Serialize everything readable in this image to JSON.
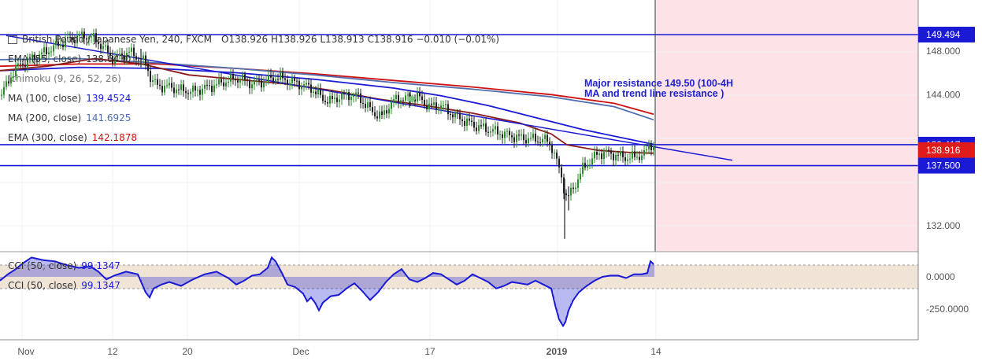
{
  "header": {
    "symbol": "British Pound / Japanese Yen, 240, FXCM",
    "ohlc": "O138.926  H138.926  L138.913  C138.916  −0.010 (−0.01%)"
  },
  "indicators": [
    {
      "label": "EMA (55, close)",
      "value": "138.6430",
      "color": "#333333"
    },
    {
      "label": "Ichimoku (9, 26, 52, 26)",
      "value": "",
      "color": "#777777"
    },
    {
      "label": "MA (100, close)",
      "value": "139.4524",
      "color": "#1a1ad4"
    },
    {
      "label": "MA (200, close)",
      "value": "141.6925",
      "color": "#4f6fae"
    },
    {
      "label": "EMA (300, close)",
      "value": "142.1878",
      "color": "#d01010"
    }
  ],
  "annotation": "Major resistance 149.50 (100-4H MA and trend line resistance )",
  "cci_labels": [
    {
      "label": "CCI (50, close)",
      "value": "99.1347"
    },
    {
      "label": "CCI (50, close)",
      "value": "99.1347"
    }
  ],
  "price_axis": {
    "ticks": [
      "148.000",
      "144.000",
      "139.417",
      "138.916",
      "137.500",
      "132.000"
    ]
  },
  "cci_axis": {
    "ticks": [
      "0.0000",
      "-250.0000"
    ]
  },
  "time_axis": {
    "ticks": [
      "Nov",
      "12",
      "20",
      "Dec",
      "17",
      "2019",
      "14"
    ]
  },
  "chart_data": {
    "type": "candlestick",
    "symbol": "GBP/JPY",
    "timeframe": "240",
    "ylim": [
      129.5,
      150.5
    ],
    "horizontal_levels": [
      {
        "value": 149.494,
        "color": "#1a1ad4"
      },
      {
        "value": 139.417,
        "color": "#1a1ad4"
      },
      {
        "value": 137.5,
        "color": "#1a1ad4"
      }
    ],
    "last_price": 138.916,
    "price_path": [
      [
        0,
        143.9
      ],
      [
        8,
        144.8
      ],
      [
        16,
        146.0
      ],
      [
        26,
        146.8
      ],
      [
        40,
        147.3
      ],
      [
        55,
        147.8
      ],
      [
        70,
        148.4
      ],
      [
        85,
        149.0
      ],
      [
        100,
        149.3
      ],
      [
        112,
        149.4
      ],
      [
        122,
        149.0
      ],
      [
        135,
        148.0
      ],
      [
        145,
        147.2
      ],
      [
        155,
        147.6
      ],
      [
        165,
        147.9
      ],
      [
        175,
        147.4
      ],
      [
        185,
        146.9
      ],
      [
        192,
        145.4
      ],
      [
        200,
        144.8
      ],
      [
        215,
        144.7
      ],
      [
        230,
        144.4
      ],
      [
        245,
        144.3
      ],
      [
        260,
        144.6
      ],
      [
        275,
        144.9
      ],
      [
        290,
        145.3
      ],
      [
        305,
        145.5
      ],
      [
        320,
        145.0
      ],
      [
        335,
        145.2
      ],
      [
        350,
        145.6
      ],
      [
        365,
        145.3
      ],
      [
        380,
        145.0
      ],
      [
        395,
        144.6
      ],
      [
        410,
        143.6
      ],
      [
        420,
        143.4
      ],
      [
        430,
        143.8
      ],
      [
        445,
        144.0
      ],
      [
        455,
        143.8
      ],
      [
        465,
        143.0
      ],
      [
        475,
        142.3
      ],
      [
        485,
        142.0
      ],
      [
        495,
        143.1
      ],
      [
        505,
        143.7
      ],
      [
        515,
        143.6
      ],
      [
        530,
        143.8
      ],
      [
        545,
        142.9
      ],
      [
        560,
        143.0
      ],
      [
        575,
        142.2
      ],
      [
        590,
        141.6
      ],
      [
        605,
        141.1
      ],
      [
        620,
        140.8
      ],
      [
        635,
        140.5
      ],
      [
        650,
        140.2
      ],
      [
        665,
        140.0
      ],
      [
        680,
        139.9
      ],
      [
        695,
        139.8
      ],
      [
        702,
        139.0
      ],
      [
        708,
        137.6
      ],
      [
        712,
        136.8
      ],
      [
        716,
        135.5
      ],
      [
        720,
        134.4
      ],
      [
        726,
        135.2
      ],
      [
        732,
        136.0
      ],
      [
        740,
        137.2
      ],
      [
        750,
        138.0
      ],
      [
        760,
        138.6
      ],
      [
        770,
        138.7
      ],
      [
        780,
        138.5
      ],
      [
        790,
        138.3
      ],
      [
        800,
        138.2
      ],
      [
        810,
        138.4
      ],
      [
        818,
        138.5
      ],
      [
        824,
        139.3
      ],
      [
        828,
        139.5
      ],
      [
        833,
        138.9
      ]
    ],
    "wicks": [
      [
        717,
        130.8,
        136.3
      ],
      [
        722,
        133.4,
        135.6
      ],
      [
        520,
        142.8,
        144.2
      ],
      [
        179,
        146.5,
        148.2
      ]
    ],
    "series": [
      {
        "name": "EMA (300, close)",
        "color": "#d01010",
        "x": [
          0,
          100,
          200,
          300,
          400,
          500,
          600,
          700,
          780,
          830
        ],
        "y": [
          146.6,
          146.8,
          146.8,
          146.4,
          145.9,
          145.3,
          144.7,
          144.0,
          143.2,
          142.2
        ]
      },
      {
        "name": "MA (200, close)",
        "color": "#4f6fae",
        "x": [
          0,
          100,
          200,
          300,
          400,
          500,
          600,
          700,
          780,
          830
        ],
        "y": [
          147.2,
          147.3,
          146.9,
          146.4,
          145.8,
          145.1,
          144.5,
          143.8,
          142.9,
          141.7
        ]
      },
      {
        "name": "MA (100, close)",
        "color": "#1a1ad4",
        "x": [
          0,
          100,
          200,
          300,
          400,
          500,
          560,
          620,
          680,
          740,
          830
        ],
        "y": [
          146.2,
          146.5,
          146.4,
          146.0,
          145.4,
          144.6,
          143.9,
          143.0,
          141.9,
          140.8,
          139.45
        ]
      },
      {
        "name": "EMA (55, close)",
        "color": "#8b1a1a",
        "x": [
          0,
          60,
          120,
          180,
          240,
          300,
          360,
          420,
          480,
          540,
          600,
          660,
          700,
          720,
          760,
          800,
          830
        ],
        "y": [
          146.2,
          146.6,
          147.3,
          146.8,
          145.8,
          145.4,
          145.0,
          144.4,
          143.6,
          143.0,
          142.3,
          141.4,
          140.4,
          139.4,
          138.9,
          138.7,
          138.64
        ]
      },
      {
        "name": "Trend line",
        "color": "#1a1ad4",
        "x": [
          8,
          930
        ],
        "y": [
          149.4,
          138.0
        ]
      }
    ],
    "cci": {
      "name": "CCI (50, close)",
      "ylim": [
        -400,
        180
      ],
      "x": [
        0,
        10,
        20,
        30,
        40,
        55,
        70,
        85,
        100,
        115,
        125,
        135,
        145,
        160,
        175,
        185,
        190,
        195,
        205,
        215,
        230,
        245,
        260,
        275,
        290,
        300,
        310,
        320,
        330,
        340,
        345,
        350,
        358,
        365,
        375,
        385,
        390,
        395,
        400,
        405,
        410,
        420,
        430,
        440,
        450,
        460,
        470,
        480,
        490,
        500,
        510,
        520,
        530,
        540,
        550,
        560,
        570,
        580,
        590,
        600,
        610,
        620,
        630,
        640,
        650,
        660,
        670,
        680,
        690,
        700,
        705,
        710,
        715,
        718,
        722,
        728,
        735,
        745,
        755,
        765,
        775,
        785,
        795,
        805,
        815,
        822,
        826,
        830
      ],
      "y": [
        -30,
        20,
        60,
        110,
        150,
        130,
        120,
        90,
        70,
        80,
        40,
        -20,
        10,
        40,
        20,
        -120,
        -160,
        -90,
        -60,
        -40,
        -70,
        -20,
        20,
        40,
        -10,
        -60,
        -30,
        10,
        20,
        70,
        150,
        120,
        30,
        -60,
        -80,
        -130,
        -190,
        -160,
        -200,
        -260,
        -200,
        -150,
        -140,
        -90,
        -50,
        -110,
        -180,
        -120,
        -40,
        20,
        60,
        -20,
        -40,
        -10,
        30,
        20,
        -20,
        -60,
        -30,
        20,
        -10,
        -40,
        -90,
        -70,
        -40,
        -50,
        -60,
        -30,
        -60,
        -90,
        -220,
        -330,
        -380,
        -350,
        -260,
        -180,
        -120,
        -70,
        -30,
        0,
        10,
        10,
        -10,
        20,
        20,
        30,
        120,
        99
      ]
    },
    "forecast_zone": {
      "from_x": 832,
      "color": "#fde3e8"
    }
  }
}
